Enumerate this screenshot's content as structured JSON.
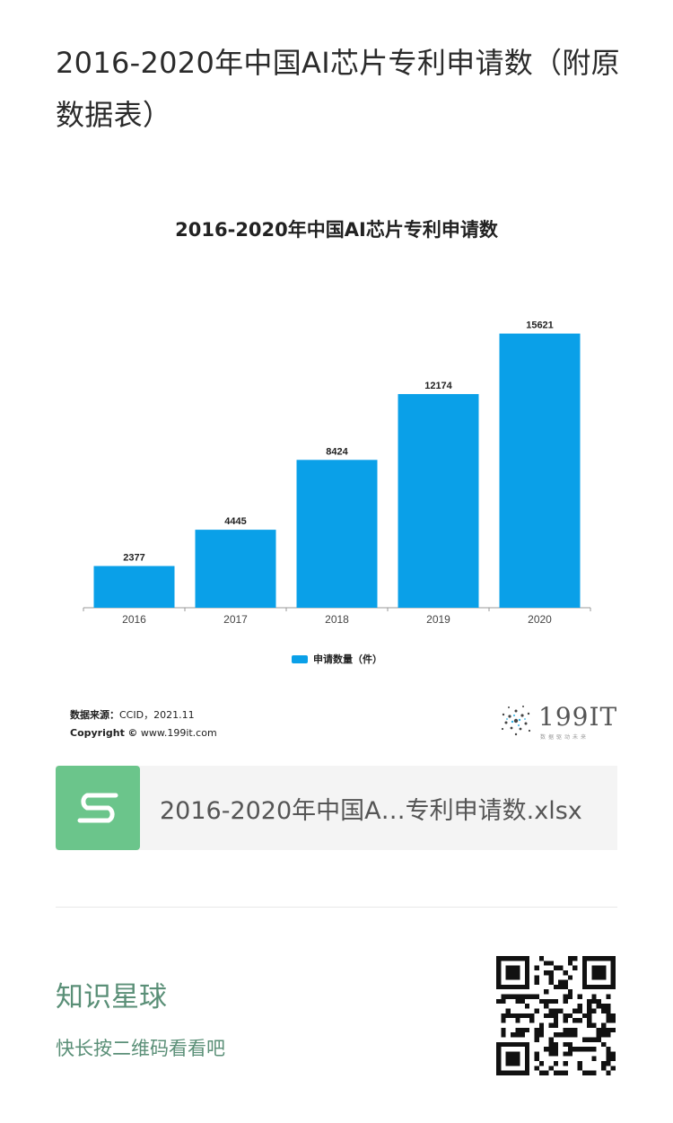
{
  "article": {
    "title": "2016-2020年中国AI芯片专利申请数（附原数据表）"
  },
  "chart_data": {
    "type": "bar",
    "title": "2016-2020年中国AI芯片专利申请数",
    "categories": [
      "2016",
      "2017",
      "2018",
      "2019",
      "2020"
    ],
    "series": [
      {
        "name": "申请数量（件）",
        "values": [
          2377,
          4445,
          8424,
          12174,
          15621
        ]
      }
    ],
    "data_labels": true,
    "ylim": [
      0,
      18000
    ],
    "grid": false,
    "legend": "bottom-center",
    "bar_color": "#0aa0e8"
  },
  "source": {
    "label": "数据来源：",
    "value": "CCID，2021.11",
    "copyright_label": "Copyright",
    "copyright_symbol": "©",
    "copyright_site": "www.199it.com"
  },
  "brand": {
    "name": "199IT",
    "tagline": "数据驱动未来"
  },
  "attachment": {
    "file_name": "2016-2020年中国A…专利申请数.xlsx",
    "icon": "spreadsheet-s-icon",
    "icon_color": "#6bc58b"
  },
  "footer": {
    "title": "知识星球",
    "subtitle": "快长按二维码看看吧",
    "qr_icon": "qr-code-icon"
  }
}
